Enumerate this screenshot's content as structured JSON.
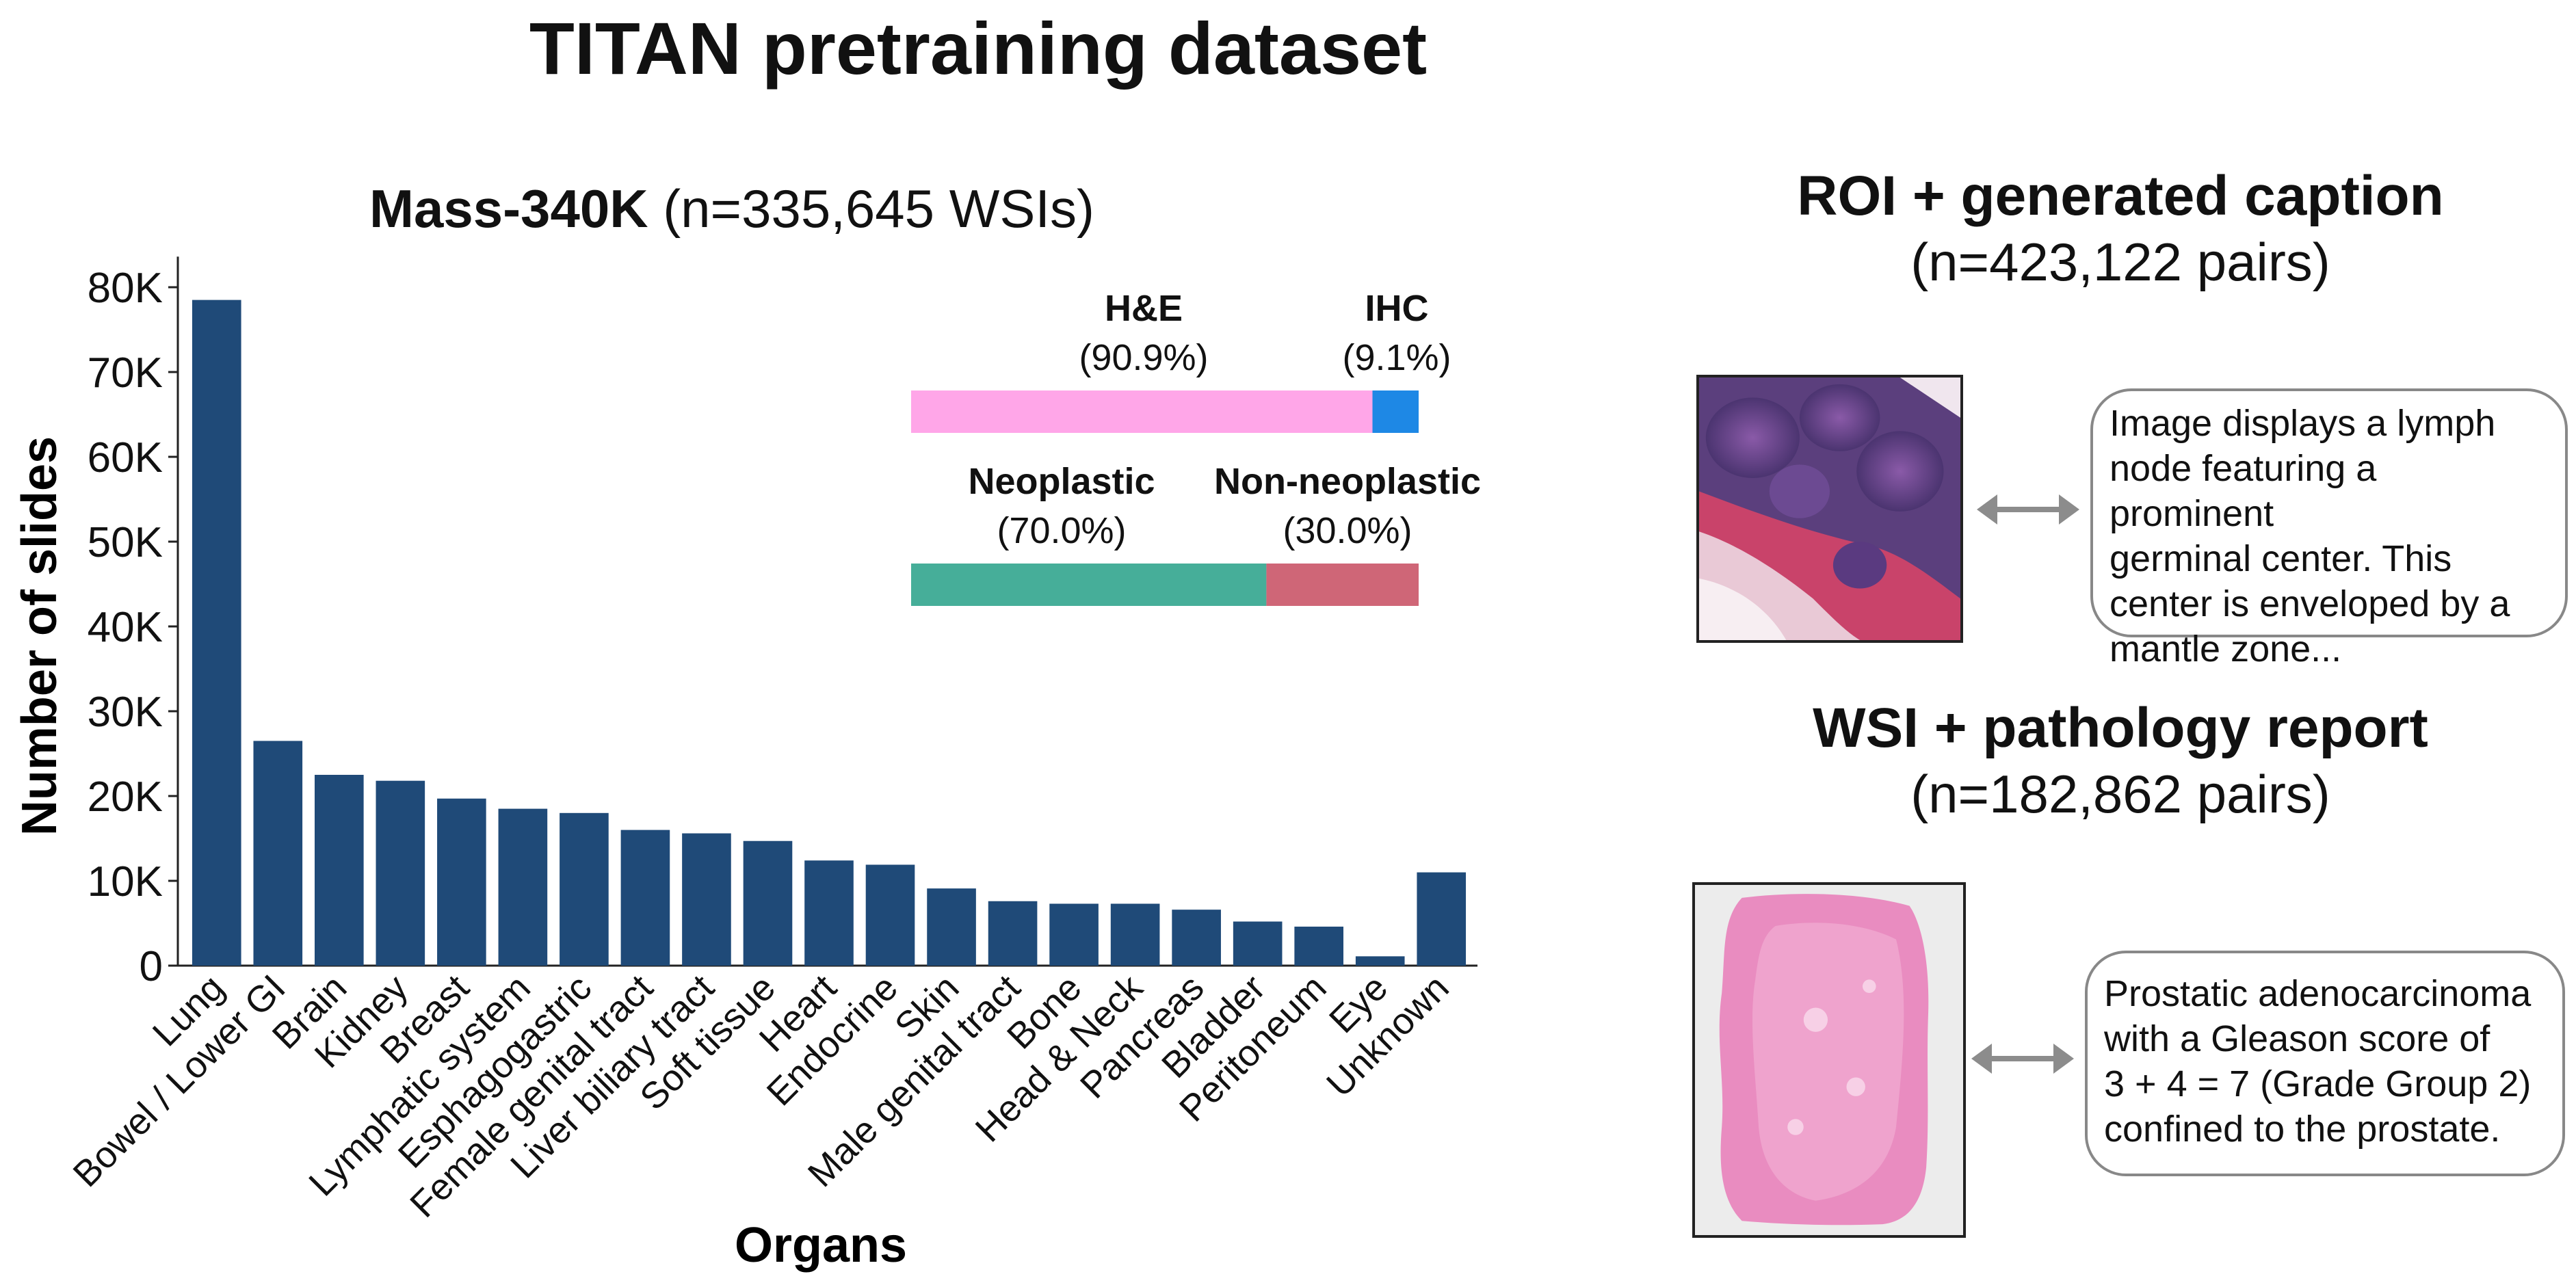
{
  "title": "TITAN pretraining dataset",
  "chart_data": {
    "type": "bar",
    "title_bold": "Mass-340K",
    "title_rest": " (n=335,645 WSIs)",
    "xlabel": "Organs",
    "ylabel": "Number of slides",
    "ylim": [
      0,
      82000
    ],
    "yticks": [
      {
        "value": 0,
        "label": "0"
      },
      {
        "value": 10000,
        "label": "10K"
      },
      {
        "value": 20000,
        "label": "20K"
      },
      {
        "value": 30000,
        "label": "30K"
      },
      {
        "value": 40000,
        "label": "40K"
      },
      {
        "value": 50000,
        "label": "50K"
      },
      {
        "value": 60000,
        "label": "60K"
      },
      {
        "value": 70000,
        "label": "70K"
      },
      {
        "value": 80000,
        "label": "80K"
      }
    ],
    "bar_color": "#1f4a78",
    "categories": [
      "Lung",
      "Bowel / Lower GI",
      "Brain",
      "Kidney",
      "Breast",
      "Lymphatic system",
      "Esphagogastric",
      "Female genital tract",
      "Liver biliary tract",
      "Soft tissue",
      "Heart",
      "Endocrine",
      "Skin",
      "Male genital tract",
      "Bone",
      "Head & Neck",
      "Pancreas",
      "Bladder",
      "Peritoneum",
      "Eye",
      "Unknown"
    ],
    "values": [
      78500,
      26500,
      22500,
      21800,
      19700,
      18500,
      18000,
      16000,
      15600,
      14700,
      12400,
      11900,
      9100,
      7600,
      7300,
      7300,
      6600,
      5200,
      4600,
      1100,
      11000
    ],
    "stains": {
      "segments": [
        {
          "label": "H&E",
          "pct_label": "(90.9%)",
          "value": 90.9,
          "color": "#ffa6e8"
        },
        {
          "label": "IHC",
          "pct_label": "(9.1%)",
          "value": 9.1,
          "color": "#1e88e5"
        }
      ]
    },
    "diagnosis": {
      "segments": [
        {
          "label": "Neoplastic",
          "pct_label": "(70.0%)",
          "value": 70.0,
          "color": "#46ae99"
        },
        {
          "label": "Non-neoplastic",
          "pct_label": "(30.0%)",
          "value": 30.0,
          "color": "#cf6677"
        }
      ]
    }
  },
  "roi_section": {
    "title": "ROI + generated caption",
    "subtitle": "(n=423,122 pairs)",
    "caption_lines": [
      "Image displays a lymph",
      "node featuring a prominent",
      "germinal center. This",
      "center is enveloped by a",
      "mantle zone..."
    ]
  },
  "wsi_section": {
    "title": "WSI + pathology report",
    "subtitle": "(n=182,862 pairs)",
    "caption_lines": [
      "Prostatic adenocarcinoma",
      "with a Gleason score of",
      "3 + 4 = 7 (Grade Group 2)",
      "confined to the prostate."
    ]
  }
}
